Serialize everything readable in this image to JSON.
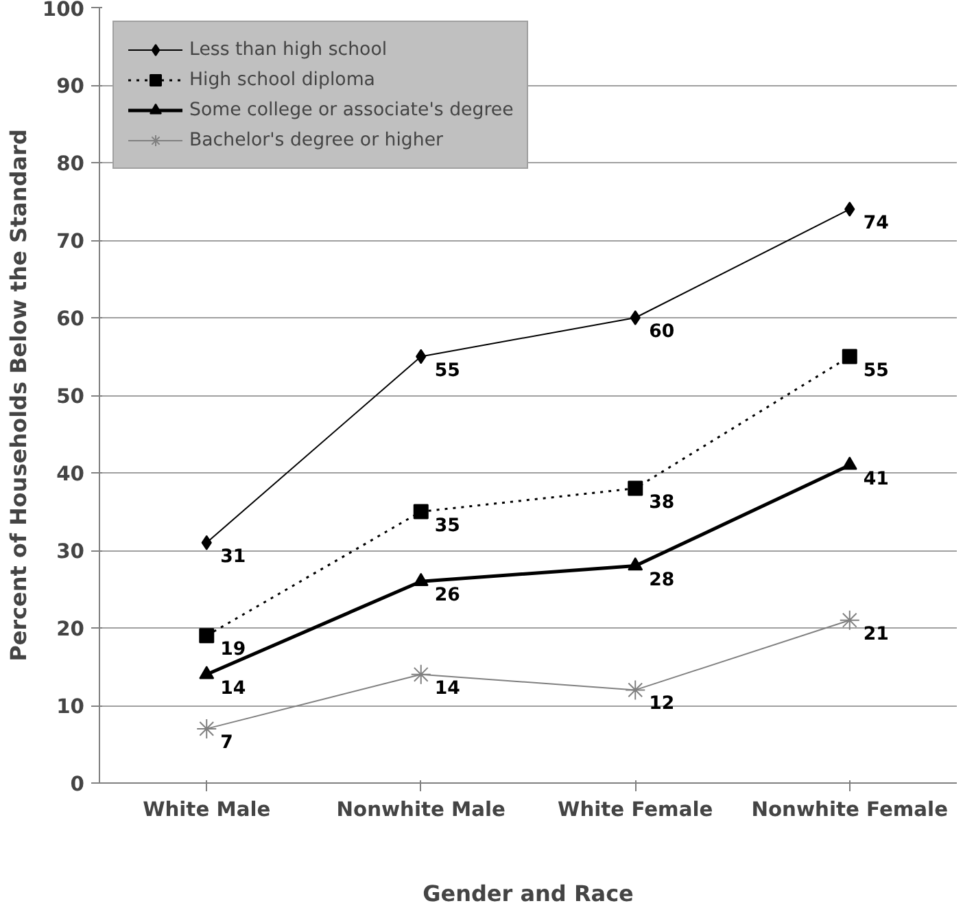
{
  "chart_data": {
    "type": "line",
    "xlabel": "Gender and Race",
    "ylabel": "Percent of Households Below the Standard",
    "categories": [
      "White Male",
      "Nonwhite Male",
      "White Female",
      "Nonwhite Female"
    ],
    "series": [
      {
        "name": "Less than high school",
        "color": "#000000",
        "values": [
          31,
          55,
          60,
          74
        ],
        "marker": "diamond",
        "line_style": "solid"
      },
      {
        "name": "High school diploma",
        "color": "#000000",
        "values": [
          19,
          35,
          38,
          55
        ],
        "marker": "square",
        "line_style": "dotted"
      },
      {
        "name": "Some college or associate's degree",
        "color": "#000000",
        "values": [
          14,
          26,
          28,
          41
        ],
        "marker": "triangle",
        "line_style": "solid"
      },
      {
        "name": "Bachelor's degree or higher",
        "color": "#808080",
        "values": [
          7,
          14,
          12,
          21
        ],
        "marker": "cross",
        "line_style": "solid"
      }
    ],
    "ylim": [
      0,
      100
    ],
    "yticks": [
      0,
      10,
      20,
      30,
      40,
      50,
      60,
      70,
      80,
      90,
      100
    ],
    "grid": "y",
    "legend": "top left",
    "data_labels": true
  }
}
